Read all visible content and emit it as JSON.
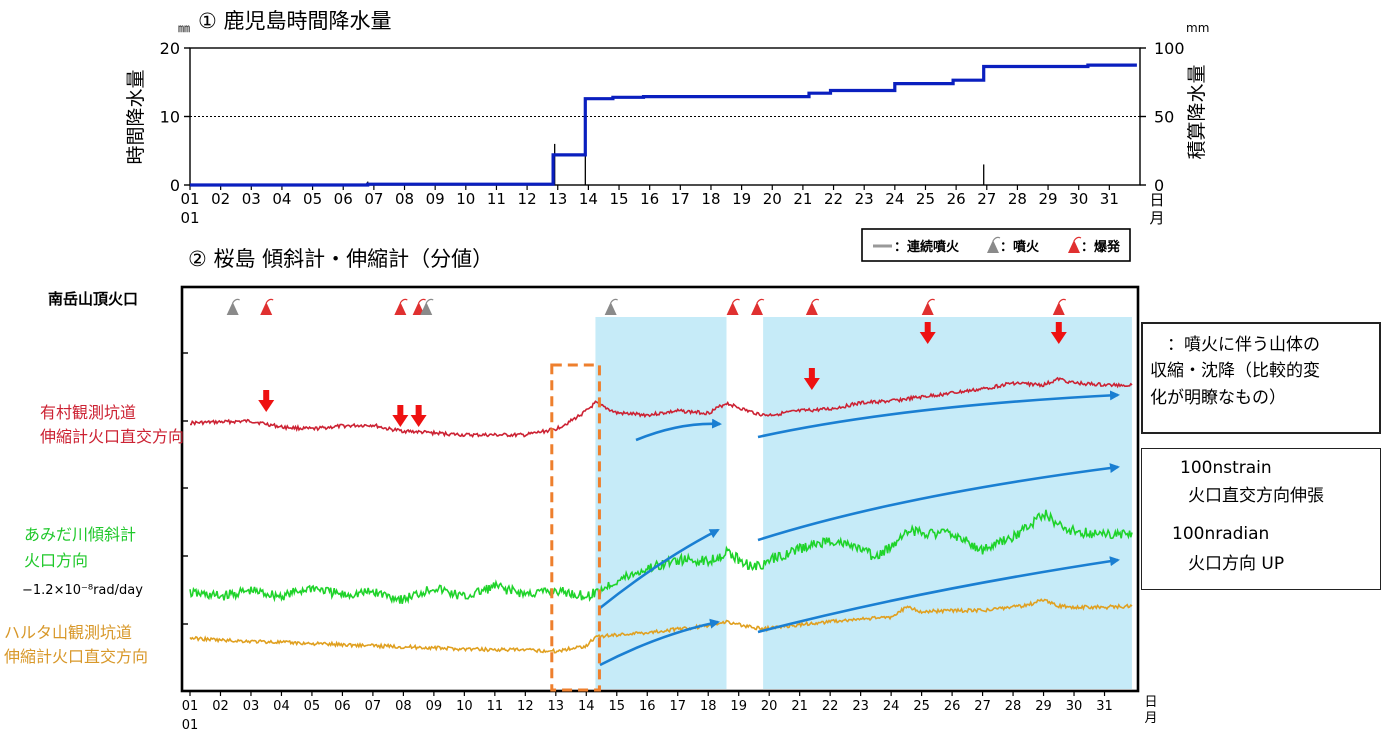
{
  "chart_data": [
    {
      "type": "line",
      "title": "① 鹿児島時間降水量",
      "ylabel_left": "時間降水量",
      "ylabel_right": "積算降水量",
      "unit_left": "㎜",
      "unit_right": "mm",
      "ylim_left": [
        0,
        20
      ],
      "yticks_left": [
        "0",
        "10",
        "20"
      ],
      "ylim_right": [
        0,
        100
      ],
      "yticks_right": [
        "0",
        "50",
        "100"
      ],
      "grid_dotted_at": 10,
      "x_ticks": [
        "01",
        "02",
        "03",
        "04",
        "05",
        "06",
        "07",
        "08",
        "09",
        "10",
        "11",
        "12",
        "13",
        "14",
        "15",
        "16",
        "17",
        "18",
        "19",
        "20",
        "21",
        "22",
        "23",
        "24",
        "25",
        "26",
        "27",
        "28",
        "29",
        "30",
        "31"
      ],
      "x_sublabel": "01",
      "x_day_label": "日",
      "x_month_label": "月",
      "hourly_bars": [
        {
          "day": 6.8,
          "mm": 0.5
        },
        {
          "day": 12.9,
          "mm": 6.0
        },
        {
          "day": 13.9,
          "mm": 8.5
        },
        {
          "day": 26.9,
          "mm": 3.0
        }
      ],
      "cumulative_series": {
        "name": "積算降水量",
        "color": "#0a1fbf",
        "points": [
          [
            1,
            0
          ],
          [
            6.8,
            0
          ],
          [
            6.8,
            0.6
          ],
          [
            12.85,
            0.6
          ],
          [
            12.85,
            22
          ],
          [
            13.9,
            22
          ],
          [
            13.9,
            63
          ],
          [
            14.8,
            63
          ],
          [
            14.8,
            64
          ],
          [
            15.8,
            64
          ],
          [
            15.8,
            64.5
          ],
          [
            21.2,
            64.5
          ],
          [
            21.2,
            67
          ],
          [
            21.9,
            67
          ],
          [
            21.9,
            69
          ],
          [
            24.0,
            69
          ],
          [
            24.0,
            74
          ],
          [
            25.9,
            74
          ],
          [
            25.9,
            76.5
          ],
          [
            26.9,
            76.5
          ],
          [
            26.9,
            86.5
          ],
          [
            30.3,
            86.5
          ],
          [
            30.3,
            87.5
          ],
          [
            31.9,
            87.5
          ]
        ]
      }
    },
    {
      "type": "line",
      "title": "② 桜島 傾斜計・伸縮計（分値）",
      "x_ticks": [
        "01",
        "02",
        "03",
        "04",
        "05",
        "06",
        "07",
        "08",
        "09",
        "10",
        "11",
        "12",
        "13",
        "14",
        "15",
        "16",
        "17",
        "18",
        "19",
        "20",
        "21",
        "22",
        "23",
        "24",
        "25",
        "26",
        "27",
        "28",
        "29",
        "30",
        "31"
      ],
      "x_sublabel": "01",
      "x_day_label": "日",
      "x_month_label": "月",
      "crater_label": "南岳山頂火口",
      "eruptions": [
        {
          "day": 2.4,
          "kind": "eruption"
        },
        {
          "day": 3.5,
          "kind": "explosion"
        },
        {
          "day": 7.9,
          "kind": "explosion"
        },
        {
          "day": 8.5,
          "kind": "explosion"
        },
        {
          "day": 8.75,
          "kind": "eruption"
        },
        {
          "day": 14.8,
          "kind": "eruption"
        },
        {
          "day": 18.8,
          "kind": "explosion"
        },
        {
          "day": 19.6,
          "kind": "explosion"
        },
        {
          "day": 21.4,
          "kind": "explosion"
        },
        {
          "day": 25.2,
          "kind": "explosion"
        },
        {
          "day": 29.5,
          "kind": "explosion"
        }
      ],
      "contraction_arrows": [
        {
          "day": 3.5,
          "level": 0
        },
        {
          "day": 7.9,
          "level": 0
        },
        {
          "day": 8.5,
          "level": 0
        },
        {
          "day": 21.4,
          "level": 0
        },
        {
          "day": 25.2,
          "level": 1
        },
        {
          "day": 29.5,
          "level": 1
        }
      ],
      "shaded_ranges": [
        [
          14.3,
          18.6
        ],
        [
          19.8,
          31.9
        ]
      ],
      "dashed_box": [
        13.0,
        14.3
      ],
      "legend": {
        "continuous": "：連続噴火",
        "eruption": "：噴火",
        "explosion": "：爆発"
      },
      "series": [
        {
          "name": "有村観測坑道 伸縮計火口直交方向",
          "label_lines": [
            "有村観測坑道",
            "伸縮計火口直交方向"
          ],
          "color": "#cc2233",
          "points": [
            [
              1,
              0
            ],
            [
              3,
              2
            ],
            [
              4,
              -4
            ],
            [
              5,
              -6
            ],
            [
              6,
              -3
            ],
            [
              7,
              -2
            ],
            [
              7.5,
              -6
            ],
            [
              8,
              -8
            ],
            [
              9,
              -10
            ],
            [
              10,
              -12
            ],
            [
              12,
              -12
            ],
            [
              13,
              -6
            ],
            [
              13.5,
              2
            ],
            [
              14,
              12
            ],
            [
              14.3,
              20
            ],
            [
              15,
              10
            ],
            [
              16,
              8
            ],
            [
              17,
              12
            ],
            [
              18,
              10
            ],
            [
              18.6,
              20
            ],
            [
              19.3,
              12
            ],
            [
              19.8,
              8
            ],
            [
              20,
              8
            ],
            [
              21,
              12
            ],
            [
              22,
              14
            ],
            [
              23,
              20
            ],
            [
              24,
              22
            ],
            [
              25,
              26
            ],
            [
              26,
              30
            ],
            [
              27,
              34
            ],
            [
              28,
              40
            ],
            [
              29,
              38
            ],
            [
              29.5,
              44
            ],
            [
              30,
              40
            ],
            [
              31,
              38
            ],
            [
              31.9,
              38
            ]
          ]
        },
        {
          "name": "あみだ川傾斜計 火口方向",
          "label_lines": [
            "あみだ川傾斜計",
            "火口方向"
          ],
          "trend_note": "−1.2×10⁻⁸rad/day",
          "color": "#1fd32a",
          "points": [
            [
              1,
              0
            ],
            [
              2,
              -6
            ],
            [
              3,
              4
            ],
            [
              4,
              -6
            ],
            [
              5,
              10
            ],
            [
              6,
              -4
            ],
            [
              7,
              2
            ],
            [
              8,
              -12
            ],
            [
              9,
              10
            ],
            [
              10,
              -8
            ],
            [
              11,
              12
            ],
            [
              12,
              -2
            ],
            [
              13,
              4
            ],
            [
              14,
              -6
            ],
            [
              14.3,
              0
            ],
            [
              15,
              22
            ],
            [
              16,
              44
            ],
            [
              17,
              60
            ],
            [
              18,
              58
            ],
            [
              18.6,
              74
            ],
            [
              19.3,
              52
            ],
            [
              19.8,
              48
            ],
            [
              20,
              60
            ],
            [
              21,
              80
            ],
            [
              22,
              96
            ],
            [
              23,
              80
            ],
            [
              23.5,
              64
            ],
            [
              24,
              84
            ],
            [
              24.5,
              114
            ],
            [
              25,
              110
            ],
            [
              26,
              108
            ],
            [
              27,
              78
            ],
            [
              28,
              102
            ],
            [
              28.5,
              120
            ],
            [
              29,
              146
            ],
            [
              29.5,
              122
            ],
            [
              30,
              112
            ],
            [
              31,
              106
            ],
            [
              31.9,
              110
            ]
          ]
        },
        {
          "name": "ハルタ山観測坑道 伸縮計火口直交方向",
          "label_lines": [
            "ハルタ山観測坑道",
            "伸縮計火口直交方向"
          ],
          "color": "#e0a020",
          "points": [
            [
              1,
              0
            ],
            [
              2,
              -4
            ],
            [
              4,
              -8
            ],
            [
              6,
              -12
            ],
            [
              8,
              -16
            ],
            [
              10,
              -20
            ],
            [
              12,
              -22
            ],
            [
              13,
              -24
            ],
            [
              14,
              -14
            ],
            [
              14.3,
              2
            ],
            [
              15,
              6
            ],
            [
              16,
              10
            ],
            [
              17,
              16
            ],
            [
              18,
              22
            ],
            [
              18.6,
              30
            ],
            [
              19.2,
              22
            ],
            [
              19.8,
              16
            ],
            [
              20,
              18
            ],
            [
              21,
              24
            ],
            [
              22,
              30
            ],
            [
              23,
              34
            ],
            [
              24,
              38
            ],
            [
              24.5,
              56
            ],
            [
              25,
              48
            ],
            [
              26,
              50
            ],
            [
              27,
              50
            ],
            [
              28,
              56
            ],
            [
              28.5,
              60
            ],
            [
              29,
              70
            ],
            [
              29.5,
              58
            ],
            [
              30,
              56
            ],
            [
              31,
              56
            ],
            [
              31.9,
              58
            ]
          ]
        }
      ],
      "trend_arrows_color": "#1a7fd2"
    }
  ],
  "annotation_box_1": {
    "lines": [
      "：噴火に伴う山体の",
      "収縮・沈降（比較的変",
      "化が明瞭なもの）"
    ]
  },
  "annotation_box_2": {
    "line1": "100nstrain",
    "line2": "火口直交方向伸張",
    "line3": "100nradian",
    "line4": "火口方向 UP"
  }
}
